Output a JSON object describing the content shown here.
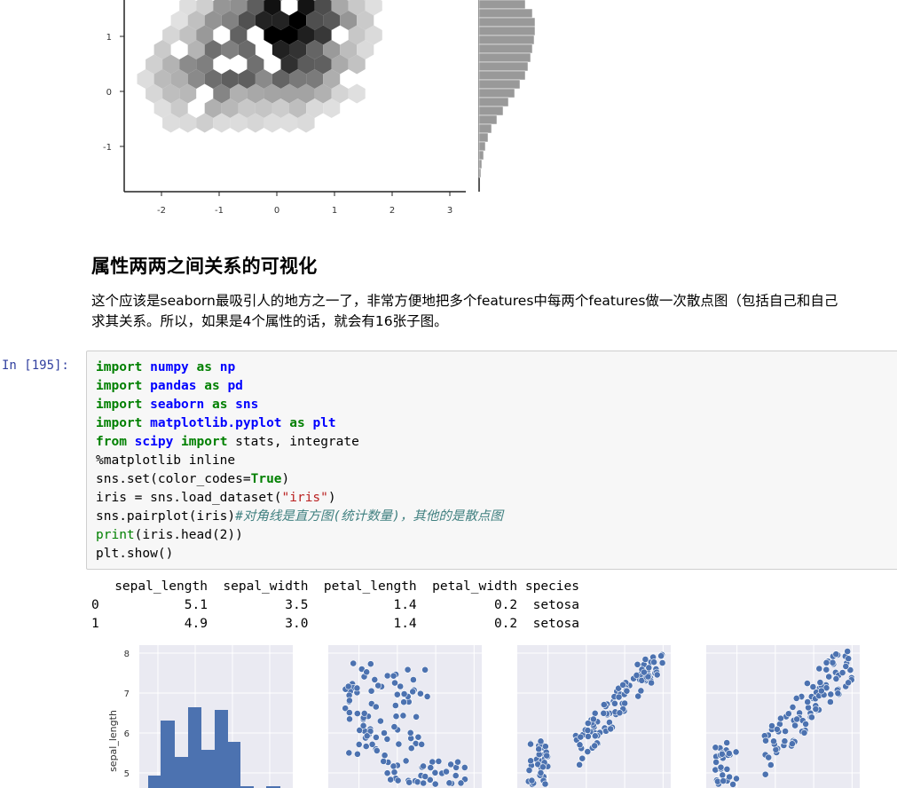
{
  "section": {
    "heading": "属性两两之间关系的可视化",
    "para_line1": "这个应该是seaborn最吸引人的地方之一了，非常方便地把多个features中每两个features做一次散点图（包括自己和自己",
    "para_line2": "求其关系。所以，如果是4个属性的话，就会有16张子图。"
  },
  "cell": {
    "prompt": "In  [195]:",
    "lines": [
      [
        [
          "kw",
          "import"
        ],
        [
          "t",
          " "
        ],
        [
          "mod",
          "numpy"
        ],
        [
          "t",
          " "
        ],
        [
          "kw",
          "as"
        ],
        [
          "t",
          " "
        ],
        [
          "mod",
          "np"
        ]
      ],
      [
        [
          "kw",
          "import"
        ],
        [
          "t",
          " "
        ],
        [
          "mod",
          "pandas"
        ],
        [
          "t",
          " "
        ],
        [
          "kw",
          "as"
        ],
        [
          "t",
          " "
        ],
        [
          "mod",
          "pd"
        ]
      ],
      [
        [
          "kw",
          "import"
        ],
        [
          "t",
          " "
        ],
        [
          "mod",
          "seaborn"
        ],
        [
          "t",
          " "
        ],
        [
          "kw",
          "as"
        ],
        [
          "t",
          " "
        ],
        [
          "mod",
          "sns"
        ]
      ],
      [
        [
          "kw",
          "import"
        ],
        [
          "t",
          " "
        ],
        [
          "mod",
          "matplotlib.pyplot"
        ],
        [
          "t",
          " "
        ],
        [
          "kw",
          "as"
        ],
        [
          "t",
          " "
        ],
        [
          "mod",
          "plt"
        ]
      ],
      [
        [
          "kw",
          "from"
        ],
        [
          "t",
          " "
        ],
        [
          "mod",
          "scipy"
        ],
        [
          "t",
          " "
        ],
        [
          "kw",
          "import"
        ],
        [
          "t",
          " stats, integrate"
        ]
      ],
      [
        [
          "t",
          "%matplotlib inline"
        ]
      ],
      [
        [
          "t",
          "sns.set(color_codes="
        ],
        [
          "tr",
          "True"
        ],
        [
          "t",
          ")"
        ]
      ],
      [
        [
          "t",
          "iris = sns.load_dataset("
        ],
        [
          "str",
          "\"iris\""
        ],
        [
          "t",
          ")"
        ]
      ],
      [
        [
          "t",
          "sns.pairplot(iris)"
        ],
        [
          "cm",
          "#对角线是直方图(统计数量)，其他的是散点图"
        ]
      ],
      [
        [
          "bi",
          "print"
        ],
        [
          "t",
          "(iris.head(2))"
        ]
      ],
      [
        [
          "t",
          "plt.show()"
        ]
      ]
    ]
  },
  "output": {
    "text": "   sepal_length  sepal_width  petal_length  petal_width species\n0           5.1          3.5           1.4          0.2  setosa\n1           4.9          3.0           1.4          0.2  setosa"
  },
  "hexbin_plot": {
    "x_ticks": [
      "-2",
      "-1",
      "0",
      "1",
      "2",
      "3"
    ],
    "y_ticks": [
      "1",
      "0",
      "-1"
    ],
    "colors": {
      "axis": "#222222",
      "marginal_bar": "#999999"
    }
  },
  "pairplot": {
    "ylabel": "sepal_length",
    "y_ticks": [
      "8",
      "7",
      "6",
      "5"
    ],
    "colors": {
      "background": "#eaeaf2",
      "marker": "#4c72b0",
      "grid": "#ffffff"
    }
  },
  "chart_data": [
    {
      "type": "heatmap",
      "x_ticks": [
        -2,
        -1,
        0,
        1,
        2,
        3
      ],
      "y_ticks": [
        1,
        0,
        -1
      ],
      "xlim": [
        -2.6,
        3.3
      ],
      "ylim": [
        -1.9,
        1.5
      ],
      "marginal": "right"
    },
    {
      "type": "bar",
      "ylabel": "sepal_length",
      "y_ticks": [
        8,
        7,
        6,
        5
      ],
      "ylim": [
        4.3,
        8.2
      ]
    }
  ]
}
